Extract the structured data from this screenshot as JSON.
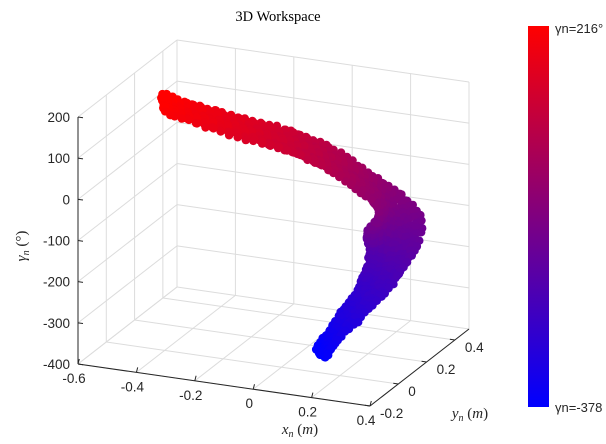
{
  "chart_data": {
    "type": "scatter",
    "subtype": "3d-point-cloud",
    "title": "3D Workspace",
    "xlabel": "x_n (m)",
    "ylabel": "y_n (m)",
    "zlabel": "γ_n (°)",
    "xlim": [
      -0.6,
      0.4
    ],
    "ylim": [
      -0.2,
      0.5
    ],
    "zlim": [
      -400,
      200
    ],
    "x_ticks": [
      "-0.6",
      "-0.4",
      "-0.2",
      "0",
      "0.2",
      "0.4"
    ],
    "y_ticks": [
      "-0.2",
      "0",
      "0.2",
      "0.4"
    ],
    "z_ticks": [
      "200",
      "100",
      "0",
      "-100",
      "-200",
      "-300",
      "-400"
    ],
    "grid": true,
    "colormap": {
      "min_label": "γn=-378",
      "max_label": "γn=216°",
      "min_value": -378,
      "max_value": 216,
      "min_color": "#0000ff",
      "max_color": "#ff0000"
    },
    "centerline": [
      {
        "x": -0.38,
        "y": -0.05,
        "z": 216
      },
      {
        "x": -0.22,
        "y": 0.05,
        "z": 160
      },
      {
        "x": -0.05,
        "y": 0.18,
        "z": 90
      },
      {
        "x": 0.1,
        "y": 0.28,
        "z": 10
      },
      {
        "x": 0.2,
        "y": 0.33,
        "z": -70
      },
      {
        "x": 0.24,
        "y": 0.3,
        "z": -150
      },
      {
        "x": 0.22,
        "y": 0.22,
        "z": -230
      },
      {
        "x": 0.16,
        "y": 0.14,
        "z": -300
      },
      {
        "x": 0.1,
        "y": 0.08,
        "z": -378
      }
    ]
  }
}
